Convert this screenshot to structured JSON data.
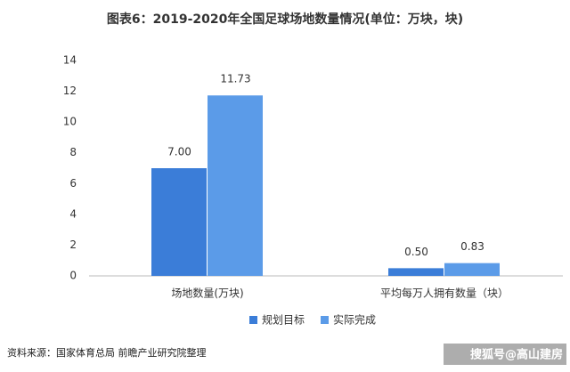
{
  "chart_data": {
    "type": "bar",
    "title": "图表6：2019-2020年全国足球场地数量情况(单位：万块，块)",
    "categories": [
      "场地数量(万块)",
      "平均每万人拥有数量（块）"
    ],
    "series": [
      {
        "name": "规划目标",
        "color": "#3b7dd8",
        "values": [
          7.0,
          0.5
        ],
        "value_labels": [
          "7.00",
          "0.50"
        ]
      },
      {
        "name": "实际完成",
        "color": "#5b9be8",
        "values": [
          11.73,
          0.83
        ],
        "value_labels": [
          "11.73",
          "0.83"
        ]
      }
    ],
    "ylim": [
      0,
      14
    ],
    "yticks": [
      0,
      2,
      4,
      6,
      8,
      10,
      12,
      14
    ],
    "source": "资料来源：国家体育总局 前瞻产业研究院整理",
    "watermark": "搜狐号@高山建房"
  }
}
